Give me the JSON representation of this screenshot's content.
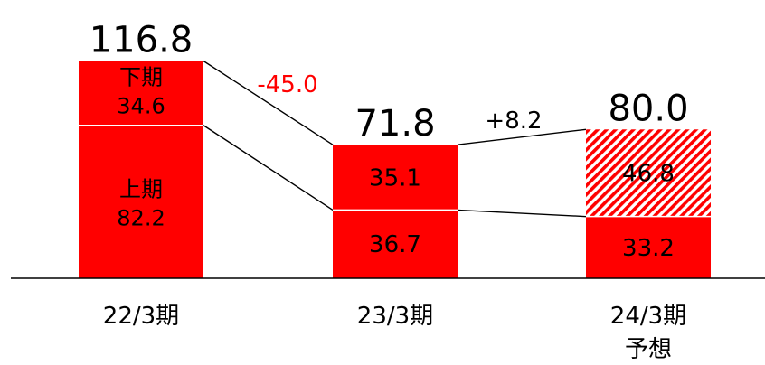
{
  "chart_data": {
    "type": "bar",
    "stacked": true,
    "categories": [
      "22/3期",
      "23/3期",
      "24/3期"
    ],
    "category_sublabels": [
      "",
      "",
      "予想"
    ],
    "series": [
      {
        "name": "上期",
        "values": [
          82.2,
          36.7,
          33.2
        ],
        "labels": [
          "82.2",
          "36.7",
          "33.2"
        ]
      },
      {
        "name": "下期",
        "values": [
          34.6,
          35.1,
          46.8
        ],
        "labels": [
          "34.6",
          "35.1",
          "46.8"
        ]
      }
    ],
    "totals": [
      "116.8",
      "71.8",
      "80.0"
    ],
    "changes": [
      {
        "from": 0,
        "to": 1,
        "label": "-45.0",
        "color": "#ff0000"
      },
      {
        "from": 1,
        "to": 2,
        "label": "+8.2",
        "color": "#000000"
      }
    ],
    "forecast_bar_pattern": "red-white-diagonal-hatch",
    "colors": {
      "bar": "#ff0000",
      "text_on_bar": "#000000",
      "axis": "#000000",
      "change_negative": "#ff0000"
    },
    "ylim": [
      0,
      120
    ],
    "grid": false,
    "legend": "inline-labels"
  }
}
